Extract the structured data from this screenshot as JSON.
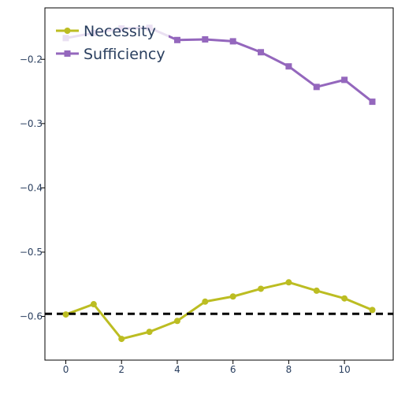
{
  "chart_data": {
    "type": "line",
    "title": "",
    "xlabel": "",
    "ylabel": "",
    "xlim": [
      -0.75,
      11.75
    ],
    "ylim": [
      -0.668,
      -0.12
    ],
    "x_ticks": [
      0,
      2,
      4,
      6,
      8,
      10
    ],
    "y_ticks": [
      -0.6,
      -0.5,
      -0.4,
      -0.3,
      -0.2
    ],
    "x_tick_labels": [
      "0",
      "2",
      "4",
      "6",
      "8",
      "10"
    ],
    "y_tick_labels": [
      "−0.6",
      "−0.5",
      "−0.4",
      "−0.3",
      "−0.2"
    ],
    "grid": false,
    "legend_position": "top-left",
    "x": [
      0,
      1,
      2,
      3,
      4,
      5,
      6,
      7,
      8,
      9,
      10,
      11
    ],
    "series": [
      {
        "name": "Necessity",
        "marker": "circle",
        "color": "#bcbd22",
        "values": [
          -0.597,
          -0.581,
          -0.635,
          -0.624,
          -0.607,
          -0.577,
          -0.569,
          -0.557,
          -0.547,
          -0.56,
          -0.572,
          -0.59
        ]
      },
      {
        "name": "Sufficiency",
        "marker": "square",
        "color": "#9467bd",
        "values": [
          -0.167,
          -0.159,
          -0.152,
          -0.151,
          -0.17,
          -0.169,
          -0.172,
          -0.189,
          -0.211,
          -0.243,
          -0.232,
          -0.266
        ]
      }
    ],
    "reference_line": {
      "y": -0.596,
      "style": "dashed",
      "color": "#000000"
    }
  }
}
